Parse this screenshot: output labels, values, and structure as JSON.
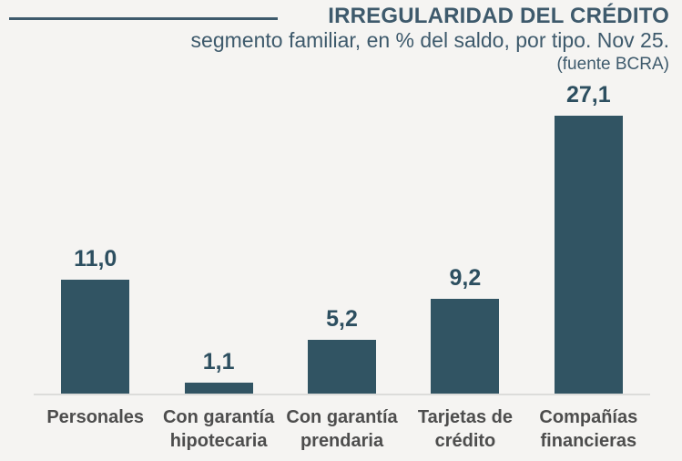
{
  "header": {
    "title": "IRREGULARIDAD DEL CRÉDITO",
    "subtitle": "segmento familiar, en % del saldo, por tipo. Nov 25.",
    "source": "(fuente BCRA)"
  },
  "colors": {
    "background": "#f5f4f2",
    "bar": "#315463",
    "title_text": "#3e5a6c",
    "value_label": "#2d4f60",
    "category_label": "#4d4d4d",
    "baseline": "#dcdcda",
    "title_rule": "#3e5a6c"
  },
  "chart_data": {
    "type": "bar",
    "title": "IRREGULARIDAD DEL CRÉDITO",
    "subtitle": "segmento familiar, en % del saldo, por tipo. Nov 25.",
    "source": "(fuente BCRA)",
    "categories": [
      "Personales",
      "Con garantía\nhipotecaria",
      "Con garantía\nprendaria",
      "Tarjetas de\ncrédito",
      "Compañías\nfinancieras"
    ],
    "values": [
      11.0,
      1.1,
      5.2,
      9.2,
      27.1
    ],
    "values_display": [
      "11,0",
      "1,1",
      "5,2",
      "9,2",
      "27,1"
    ],
    "xlabel": "",
    "ylabel": "% del saldo",
    "ylim": [
      0,
      27.1
    ],
    "grid": false,
    "legend": false,
    "unit": "%",
    "decimal_separator": ","
  }
}
